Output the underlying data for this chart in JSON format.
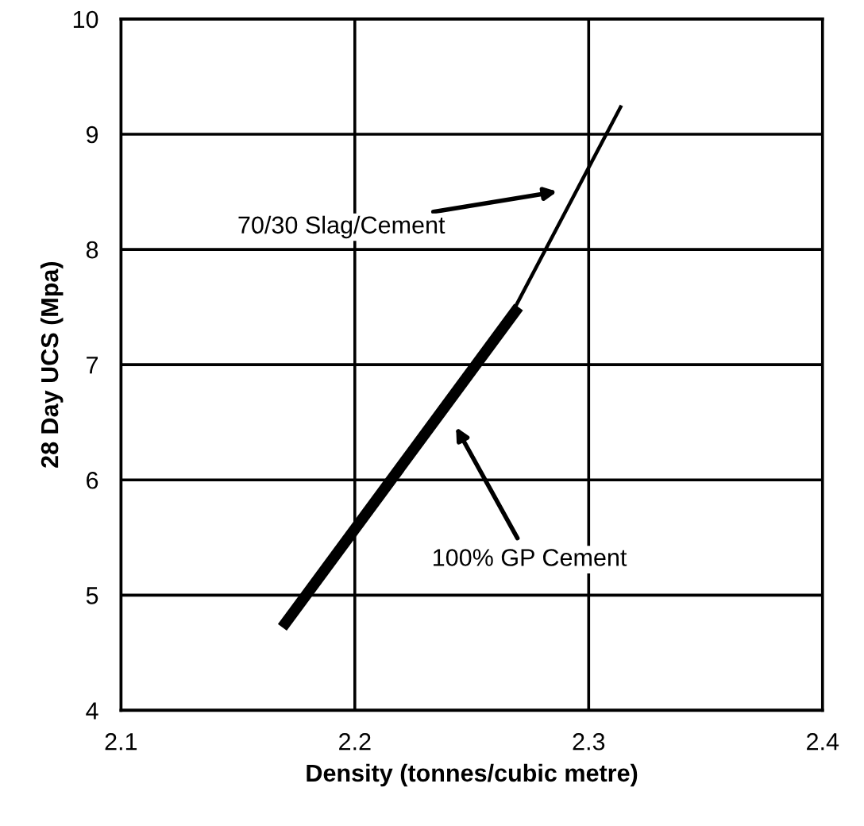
{
  "chart_data": {
    "type": "line",
    "xlabel": "Density (tonnes/cubic metre)",
    "ylabel": "28 Day UCS (Mpa)",
    "series": [
      {
        "color": "#000000",
        "x": [
          2.169,
          2.27
        ],
        "values": [
          4.72,
          7.5
        ]
      },
      {
        "color": "#000000",
        "x": [
          2.266,
          2.314
        ],
        "values": [
          7.4,
          9.25
        ]
      }
    ],
    "xlim": [
      2.1,
      2.4
    ],
    "ylim": [
      4,
      10
    ],
    "xticks": [
      2.1,
      2.2,
      2.3,
      2.4
    ],
    "yticks": [
      4,
      5,
      6,
      7,
      8,
      9,
      10
    ],
    "grid": true,
    "annotations": [
      "70/30 Slag/Cement",
      "100% GP Cement"
    ]
  }
}
